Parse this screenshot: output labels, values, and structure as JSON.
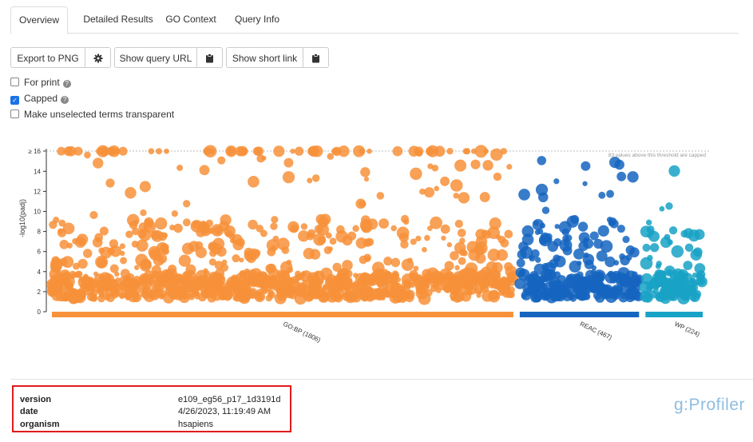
{
  "tabs": [
    {
      "label": "Overview",
      "active": true
    },
    {
      "label": "Detailed Results"
    },
    {
      "label": "GO Context"
    },
    {
      "label": "Query Info"
    }
  ],
  "toolbar": {
    "export_label": "Export to PNG",
    "settings_icon": "gear-icon",
    "query_url_label": "Show query URL",
    "copy_icon": "clipboard-icon",
    "short_link_label": "Show short link"
  },
  "options": [
    {
      "label": "For print",
      "checked": false,
      "help": true
    },
    {
      "label": "Capped",
      "checked": true,
      "help": true
    },
    {
      "label": "Make unselected terms transparent",
      "checked": false,
      "help": false
    }
  ],
  "plot": {
    "ylabel": "-log10(padj)",
    "ytick_cap": "≥ 16",
    "yticks": [
      "0",
      "2",
      "4",
      "6",
      "8",
      "10",
      "12",
      "14"
    ],
    "threshold_note": "83 values above this threshold are capped",
    "sources": [
      {
        "name": "GO:BP (1806)",
        "color": "#f7913a",
        "size": 1806
      },
      {
        "name": "REAC (467)",
        "color": "#1565c0",
        "size": 467
      },
      {
        "name": "WP (224)",
        "color": "#17a2c6",
        "size": 224
      }
    ]
  },
  "info": {
    "version_label": "version",
    "version_value": "e109_eg56_p17_1d3191d",
    "date_label": "date",
    "date_value": "4/26/2023, 11:19:49 AM",
    "organism_label": "organism",
    "organism_value": "hsapiens"
  },
  "logo": "g:Profiler"
}
